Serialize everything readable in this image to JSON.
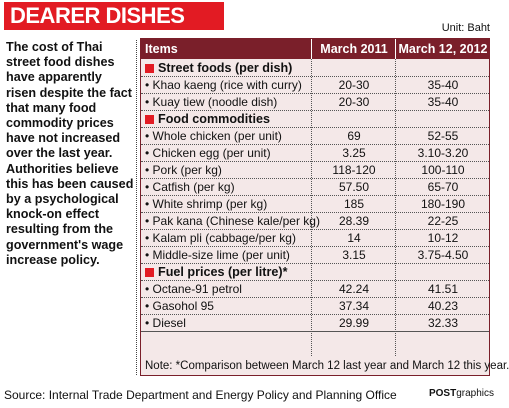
{
  "title": "DEARER DISHES",
  "unit": "Unit: Baht",
  "intro": "The cost of Thai street food dishes have apparently risen despite the fact that many food commodity prices have not increased over the last year. Authorities believe this has been caused by a psychological knock-on effect resulting from the government's wage increase policy.",
  "table": {
    "headers": [
      "Items",
      "March 2011",
      "March 12, 2012"
    ],
    "sections": [
      {
        "name": "Street foods (per dish)",
        "rows": [
          {
            "item": "• Khao kaeng (rice with curry)",
            "march_2011": "20-30",
            "march_2012": "35-40"
          },
          {
            "item": "• Kuay tiew (noodle dish)",
            "march_2011": "20-30",
            "march_2012": "35-40"
          }
        ]
      },
      {
        "name": "Food commodities",
        "rows": [
          {
            "item": "• Whole chicken (per unit)",
            "march_2011": "69",
            "march_2012": "52-55"
          },
          {
            "item": "• Chicken egg (per unit)",
            "march_2011": "3.25",
            "march_2012": "3.10-3.20"
          },
          {
            "item": "• Pork (per kg)",
            "march_2011": "118-120",
            "march_2012": "100-110"
          },
          {
            "item": "• Catfish (per kg)",
            "march_2011": "57.50",
            "march_2012": "65-70"
          },
          {
            "item": "• White shrimp (per kg)",
            "march_2011": "185",
            "march_2012": "180-190"
          },
          {
            "item": "• Pak kana (Chinese kale/per kg)",
            "march_2011": "28.39",
            "march_2012": "22-25"
          },
          {
            "item": "• Kalam pli (cabbage/per kg)",
            "march_2011": "14",
            "march_2012": "10-12"
          },
          {
            "item": "• Middle-size lime (per unit)",
            "march_2011": "3.15",
            "march_2012": "3.75-4.50"
          }
        ]
      },
      {
        "name": "Fuel prices (per litre)*",
        "rows": [
          {
            "item": "• Octane-91 petrol",
            "march_2011": "42.24",
            "march_2012": "41.51"
          },
          {
            "item": "• Gasohol 95",
            "march_2011": "37.34",
            "march_2012": "40.23"
          },
          {
            "item": "• Diesel",
            "march_2011": "29.99",
            "march_2012": "32.33"
          }
        ]
      }
    ],
    "note": "Note: *Comparison between March 12 last year and March 12 this year."
  },
  "source": "Source: Internal Trade Department and Energy Policy and Planning Office",
  "credit": {
    "brand": "POST",
    "suffix": "graphics"
  },
  "colors": {
    "accent": "#e21b23",
    "header": "#7a1f2a",
    "table_bg": "#f4e8e8"
  }
}
